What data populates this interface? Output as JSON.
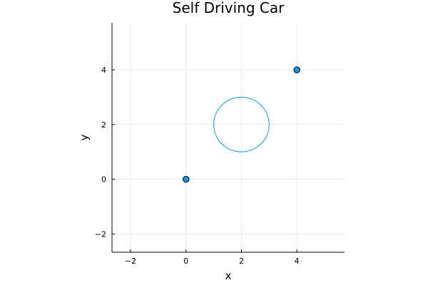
{
  "chart_data": {
    "type": "scatter",
    "title": "Self Driving Car",
    "xlabel": "x",
    "ylabel": "y",
    "xlim": [
      -2.67,
      5.72
    ],
    "ylim": [
      -2.67,
      5.72
    ],
    "grid": true,
    "legend": "none",
    "x_ticks": [
      {
        "value": -2,
        "label": "−2"
      },
      {
        "value": 0,
        "label": "0"
      },
      {
        "value": 2,
        "label": "2"
      },
      {
        "value": 4,
        "label": "4"
      }
    ],
    "y_ticks": [
      {
        "value": -2,
        "label": "−2"
      },
      {
        "value": 0,
        "label": "0"
      },
      {
        "value": 2,
        "label": "2"
      },
      {
        "value": 4,
        "label": "4"
      }
    ],
    "series": [
      {
        "type": "scatter",
        "points": [
          {
            "x": 0,
            "y": 0
          },
          {
            "x": 4,
            "y": 4
          }
        ]
      },
      {
        "type": "circle",
        "center": [
          2,
          2
        ],
        "radius": 1
      }
    ],
    "colors": {
      "series": "#009AFA",
      "marker_stroke": "#000000",
      "grid": "#E9E9E9",
      "axis": "#000000"
    }
  }
}
